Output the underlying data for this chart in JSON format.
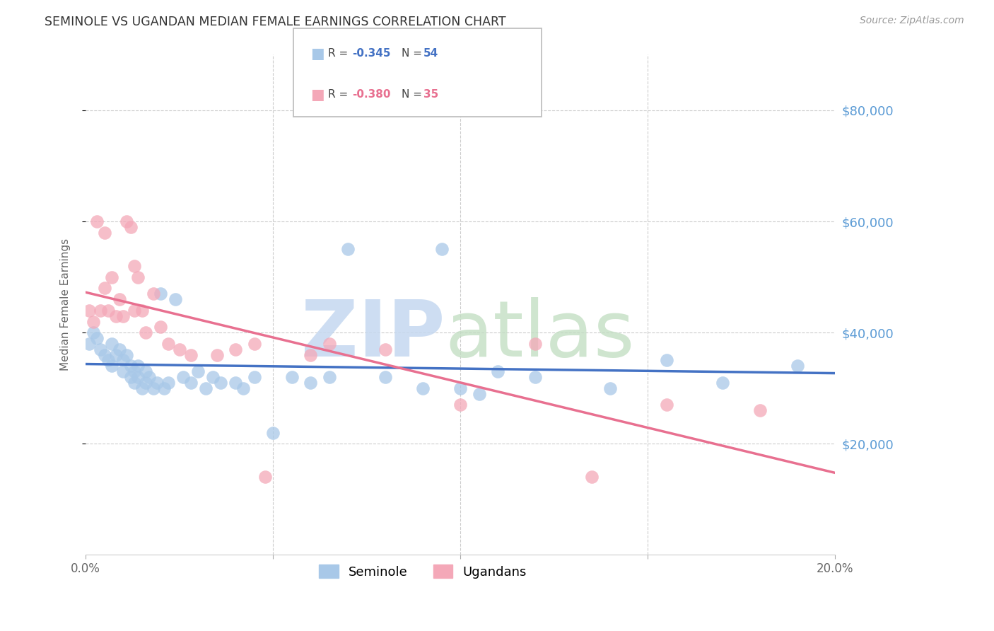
{
  "title": "SEMINOLE VS UGANDAN MEDIAN FEMALE EARNINGS CORRELATION CHART",
  "source": "Source: ZipAtlas.com",
  "ylabel": "Median Female Earnings",
  "xlim": [
    0.0,
    0.2
  ],
  "ylim": [
    0,
    90000
  ],
  "yticks": [
    20000,
    40000,
    60000,
    80000
  ],
  "ytick_labels": [
    "$20,000",
    "$40,000",
    "$60,000",
    "$80,000"
  ],
  "seminole_R": -0.345,
  "seminole_N": 54,
  "ugandan_R": -0.38,
  "ugandan_N": 35,
  "seminole_color": "#a8c8e8",
  "ugandan_color": "#f4a8b8",
  "seminole_line_color": "#4472c4",
  "ugandan_line_color": "#e87090",
  "background_color": "#ffffff",
  "grid_color": "#cccccc",
  "tick_label_color_right": "#5b9bd5",
  "seminole_x": [
    0.001,
    0.002,
    0.003,
    0.004,
    0.005,
    0.006,
    0.007,
    0.007,
    0.008,
    0.009,
    0.01,
    0.01,
    0.011,
    0.012,
    0.012,
    0.013,
    0.013,
    0.014,
    0.014,
    0.015,
    0.016,
    0.016,
    0.017,
    0.018,
    0.019,
    0.02,
    0.021,
    0.022,
    0.024,
    0.026,
    0.028,
    0.03,
    0.032,
    0.034,
    0.036,
    0.04,
    0.042,
    0.045,
    0.05,
    0.055,
    0.06,
    0.065,
    0.07,
    0.08,
    0.09,
    0.095,
    0.1,
    0.105,
    0.11,
    0.12,
    0.14,
    0.155,
    0.17,
    0.19
  ],
  "seminole_y": [
    38000,
    40000,
    39000,
    37000,
    36000,
    35000,
    38000,
    34000,
    36000,
    37000,
    35000,
    33000,
    36000,
    34000,
    32000,
    33000,
    31000,
    32000,
    34000,
    30000,
    33000,
    31000,
    32000,
    30000,
    31000,
    47000,
    30000,
    31000,
    46000,
    32000,
    31000,
    33000,
    30000,
    32000,
    31000,
    31000,
    30000,
    32000,
    22000,
    32000,
    31000,
    32000,
    55000,
    32000,
    30000,
    55000,
    30000,
    29000,
    33000,
    32000,
    30000,
    35000,
    31000,
    34000
  ],
  "ugandan_x": [
    0.001,
    0.002,
    0.003,
    0.004,
    0.005,
    0.005,
    0.006,
    0.007,
    0.008,
    0.009,
    0.01,
    0.011,
    0.012,
    0.013,
    0.013,
    0.014,
    0.015,
    0.016,
    0.018,
    0.02,
    0.022,
    0.025,
    0.028,
    0.035,
    0.04,
    0.045,
    0.048,
    0.06,
    0.065,
    0.08,
    0.1,
    0.12,
    0.135,
    0.155,
    0.18
  ],
  "ugandan_y": [
    44000,
    42000,
    60000,
    44000,
    58000,
    48000,
    44000,
    50000,
    43000,
    46000,
    43000,
    60000,
    59000,
    44000,
    52000,
    50000,
    44000,
    40000,
    47000,
    41000,
    38000,
    37000,
    36000,
    36000,
    37000,
    38000,
    14000,
    36000,
    38000,
    37000,
    27000,
    38000,
    14000,
    27000,
    26000
  ],
  "legend_seminole": "Seminole",
  "legend_ugandan": "Ugandans",
  "watermark_zip_color": "#c5d8f0",
  "watermark_atlas_color": "#c0ddc0"
}
